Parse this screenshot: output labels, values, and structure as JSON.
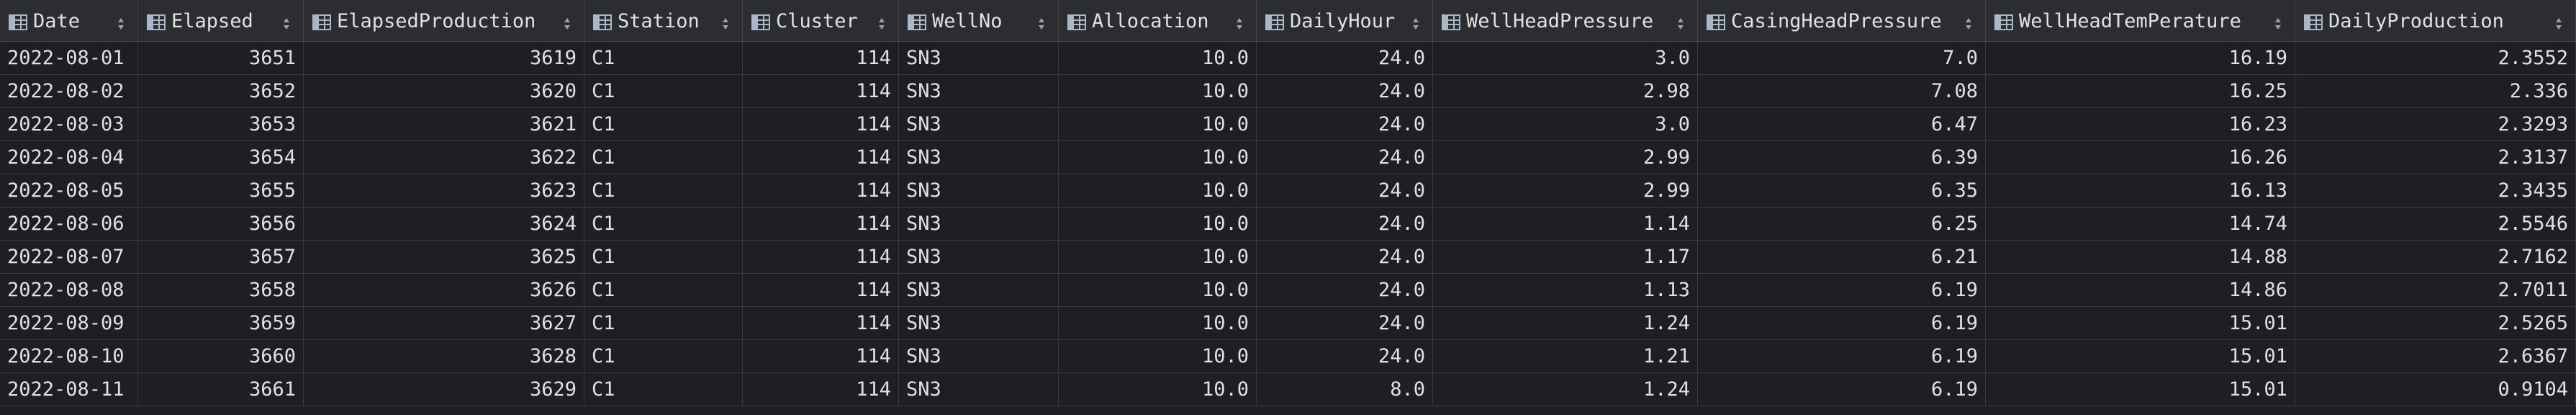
{
  "table": {
    "columns": [
      {
        "label": "Date",
        "align": "txt"
      },
      {
        "label": "Elapsed",
        "align": "num"
      },
      {
        "label": "ElapsedProduction",
        "align": "num"
      },
      {
        "label": "Station",
        "align": "txt"
      },
      {
        "label": "Cluster",
        "align": "num"
      },
      {
        "label": "WellNo",
        "align": "txt"
      },
      {
        "label": "Allocation",
        "align": "num"
      },
      {
        "label": "DailyHour",
        "align": "num"
      },
      {
        "label": "WellHeadPressure",
        "align": "num"
      },
      {
        "label": "CasingHeadPressure",
        "align": "num"
      },
      {
        "label": "WellHeadTemPerature",
        "align": "num"
      },
      {
        "label": "DailyProduction",
        "align": "num"
      }
    ],
    "rows": [
      [
        "2022-08-01",
        "3651",
        "3619",
        "C1",
        "114",
        "SN3",
        "10.0",
        "24.0",
        "3.0",
        "7.0",
        "16.19",
        "2.3552"
      ],
      [
        "2022-08-02",
        "3652",
        "3620",
        "C1",
        "114",
        "SN3",
        "10.0",
        "24.0",
        "2.98",
        "7.08",
        "16.25",
        "2.336"
      ],
      [
        "2022-08-03",
        "3653",
        "3621",
        "C1",
        "114",
        "SN3",
        "10.0",
        "24.0",
        "3.0",
        "6.47",
        "16.23",
        "2.3293"
      ],
      [
        "2022-08-04",
        "3654",
        "3622",
        "C1",
        "114",
        "SN3",
        "10.0",
        "24.0",
        "2.99",
        "6.39",
        "16.26",
        "2.3137"
      ],
      [
        "2022-08-05",
        "3655",
        "3623",
        "C1",
        "114",
        "SN3",
        "10.0",
        "24.0",
        "2.99",
        "6.35",
        "16.13",
        "2.3435"
      ],
      [
        "2022-08-06",
        "3656",
        "3624",
        "C1",
        "114",
        "SN3",
        "10.0",
        "24.0",
        "1.14",
        "6.25",
        "14.74",
        "2.5546"
      ],
      [
        "2022-08-07",
        "3657",
        "3625",
        "C1",
        "114",
        "SN3",
        "10.0",
        "24.0",
        "1.17",
        "6.21",
        "14.88",
        "2.7162"
      ],
      [
        "2022-08-08",
        "3658",
        "3626",
        "C1",
        "114",
        "SN3",
        "10.0",
        "24.0",
        "1.13",
        "6.19",
        "14.86",
        "2.7011"
      ],
      [
        "2022-08-09",
        "3659",
        "3627",
        "C1",
        "114",
        "SN3",
        "10.0",
        "24.0",
        "1.24",
        "6.19",
        "15.01",
        "2.5265"
      ],
      [
        "2022-08-10",
        "3660",
        "3628",
        "C1",
        "114",
        "SN3",
        "10.0",
        "24.0",
        "1.21",
        "6.19",
        "15.01",
        "2.6367"
      ],
      [
        "2022-08-11",
        "3661",
        "3629",
        "C1",
        "114",
        "SN3",
        "10.0",
        "8.0",
        "1.24",
        "6.19",
        "15.01",
        "0.9104"
      ]
    ]
  },
  "icons": {
    "column": "table-column-icon",
    "sort": "sort-arrows-icon"
  },
  "colors": {
    "background": "#1e1f22",
    "header": "#2b2d30",
    "text": "#dfe1e5",
    "gridline": "#393b40"
  }
}
